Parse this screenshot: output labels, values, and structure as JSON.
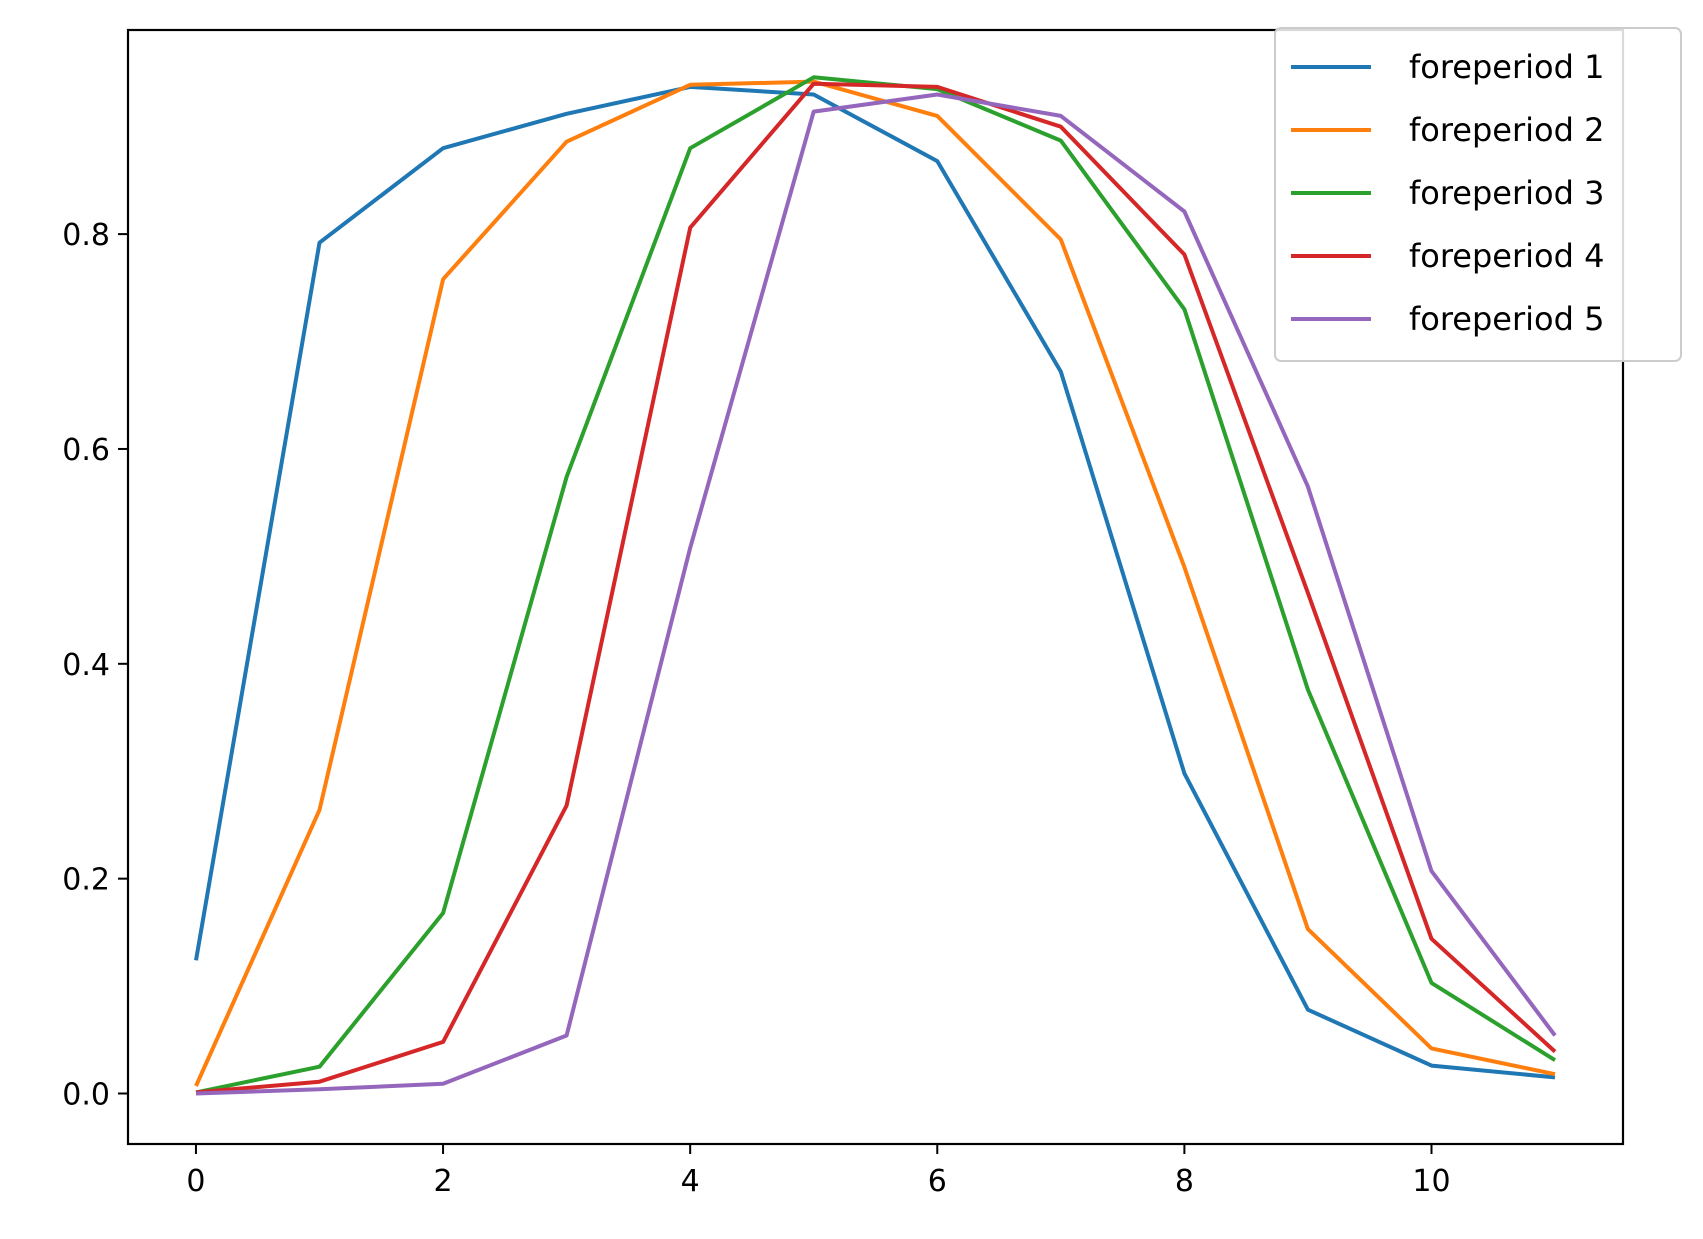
{
  "chart_data": {
    "type": "line",
    "title": "",
    "xlabel": "",
    "ylabel": "",
    "x": [
      0,
      1,
      2,
      3,
      4,
      5,
      6,
      7,
      8,
      9,
      10,
      11
    ],
    "xlim": [
      -0.55,
      11.55
    ],
    "ylim": [
      -0.047,
      0.99
    ],
    "xticks": [
      0,
      2,
      4,
      6,
      8,
      10
    ],
    "xtick_labels": [
      "0",
      "2",
      "4",
      "6",
      "8",
      "10"
    ],
    "yticks": [
      0.0,
      0.2,
      0.4,
      0.6,
      0.8
    ],
    "ytick_labels": [
      "0.0",
      "0.2",
      "0.4",
      "0.6",
      "0.8"
    ],
    "grid": false,
    "legend_position": "top-right",
    "series": [
      {
        "name": "foreperiod 1",
        "color": "#1f77b4",
        "values": [
          0.124,
          0.792,
          0.88,
          0.912,
          0.937,
          0.93,
          0.868,
          0.672,
          0.298,
          0.078,
          0.026,
          0.015
        ]
      },
      {
        "name": "foreperiod 2",
        "color": "#ff7f0e",
        "values": [
          0.007,
          0.264,
          0.758,
          0.886,
          0.939,
          0.942,
          0.91,
          0.795,
          0.49,
          0.153,
          0.042,
          0.018
        ]
      },
      {
        "name": "foreperiod 3",
        "color": "#2ca02c",
        "values": [
          0.001,
          0.025,
          0.168,
          0.574,
          0.88,
          0.946,
          0.935,
          0.887,
          0.73,
          0.376,
          0.103,
          0.031
        ]
      },
      {
        "name": "foreperiod 4",
        "color": "#d62728",
        "values": [
          0.001,
          0.011,
          0.048,
          0.268,
          0.806,
          0.94,
          0.937,
          0.9,
          0.781,
          0.466,
          0.144,
          0.039
        ]
      },
      {
        "name": "foreperiod 5",
        "color": "#9467bd",
        "values": [
          0.0,
          0.004,
          0.009,
          0.054,
          0.508,
          0.914,
          0.93,
          0.91,
          0.821,
          0.565,
          0.207,
          0.054
        ]
      }
    ]
  }
}
